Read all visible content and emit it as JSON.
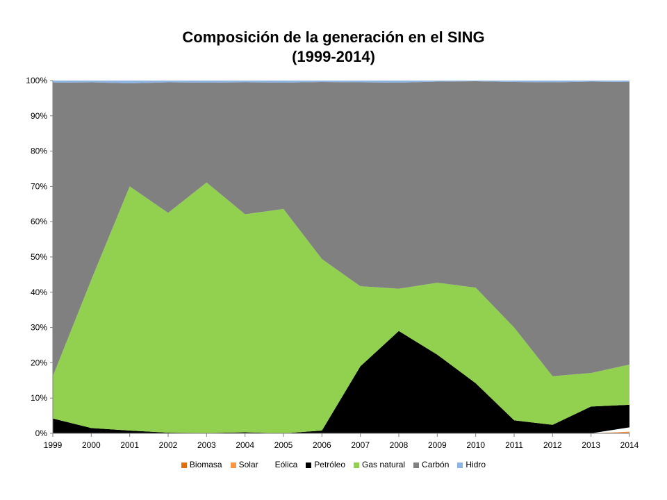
{
  "chart_data": {
    "type": "area",
    "title_line1": "Composición de la generación en el SING",
    "title_line2": "(1999-2014)",
    "xlabel": "",
    "ylabel": "",
    "stacked": true,
    "ylim": [
      0,
      100
    ],
    "grid": false,
    "legend_position": "bottom",
    "categories": [
      "1999",
      "2000",
      "2001",
      "2002",
      "2003",
      "2004",
      "2005",
      "2006",
      "2007",
      "2008",
      "2009",
      "2010",
      "2011",
      "2012",
      "2013",
      "2014"
    ],
    "y_ticks": [
      "0%",
      "10%",
      "20%",
      "30%",
      "40%",
      "50%",
      "60%",
      "70%",
      "80%",
      "90%",
      "100%"
    ],
    "series": [
      {
        "name": "Biomasa",
        "color": "#e46c0a",
        "values": [
          0,
          0,
          0,
          0,
          0,
          0,
          0,
          0,
          0,
          0,
          0,
          0,
          0,
          0,
          0,
          0.2
        ]
      },
      {
        "name": "Solar",
        "color": "#f79646",
        "values": [
          0,
          0,
          0,
          0,
          0,
          0,
          0,
          0,
          0,
          0,
          0,
          0,
          0,
          0,
          0,
          0.3
        ]
      },
      {
        "name": "Eólica",
        "color": "#ffffff",
        "values": [
          0,
          0,
          0,
          0,
          0,
          0,
          0,
          0,
          0,
          0,
          0,
          0,
          0,
          0,
          0,
          1.2
        ]
      },
      {
        "name": "Petróleo",
        "color": "#000000",
        "values": [
          4.2,
          1.5,
          0.8,
          0.2,
          0.1,
          0.3,
          0,
          0.8,
          19,
          29,
          22.3,
          14.2,
          3.7,
          2.4,
          7.6,
          6.4
        ]
      },
      {
        "name": "Gas natural",
        "color": "#92d050",
        "values": [
          12,
          42,
          69.2,
          62.3,
          71,
          61.8,
          63.6,
          48.6,
          22.7,
          12,
          20.4,
          27.1,
          26.3,
          13.8,
          9.5,
          11.4
        ]
      },
      {
        "name": "Carbón",
        "color": "#808080",
        "values": [
          83.2,
          56,
          29.2,
          37,
          28.3,
          37.4,
          35.8,
          50.2,
          57.8,
          58.4,
          57,
          58.5,
          69.6,
          83.3,
          82.6,
          80.1
        ]
      },
      {
        "name": "Hidro",
        "color": "#8db4e2",
        "values": [
          0.6,
          0.5,
          0.8,
          0.5,
          0.6,
          0.5,
          0.6,
          0.4,
          0.5,
          0.6,
          0.3,
          0.2,
          0.4,
          0.5,
          0.3,
          0.4
        ]
      }
    ]
  }
}
